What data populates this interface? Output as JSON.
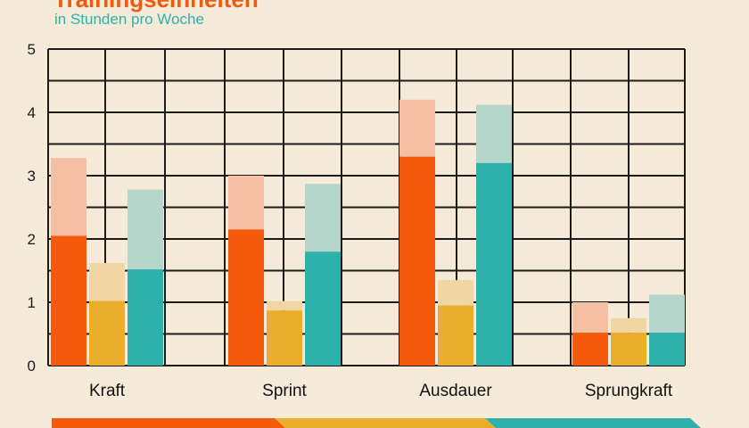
{
  "title": "Trainingseinheiten",
  "subtitle": "in Stunden pro Woche",
  "colors": {
    "background": "#f6ead9",
    "grid": "#1c1c1c",
    "series": [
      "#f55a0c",
      "#eaad2c",
      "#2fb0ad"
    ],
    "series_light": [
      "#f5bfa3",
      "#efd6a4",
      "#b6d6cc"
    ]
  },
  "chart_data": {
    "type": "bar",
    "title": "Trainingseinheiten",
    "subtitle": "in Stunden pro Woche",
    "categories": [
      "Kraft",
      "Sprint",
      "Ausdauer",
      "Sprungkraft"
    ],
    "yticks": [
      "0",
      "1",
      "2",
      "3",
      "4",
      "5"
    ],
    "ylim": [
      0,
      5
    ],
    "grid": true,
    "series": [
      {
        "values": [
          2.05,
          2.15,
          3.3,
          0.52
        ],
        "upper": [
          3.28,
          3.0,
          4.2,
          1.0
        ]
      },
      {
        "values": [
          1.02,
          0.87,
          0.95,
          0.52
        ],
        "upper": [
          1.62,
          1.02,
          1.35,
          0.75
        ]
      },
      {
        "values": [
          1.52,
          1.8,
          3.2,
          0.52
        ],
        "upper": [
          2.78,
          2.87,
          4.12,
          1.12
        ]
      }
    ]
  }
}
